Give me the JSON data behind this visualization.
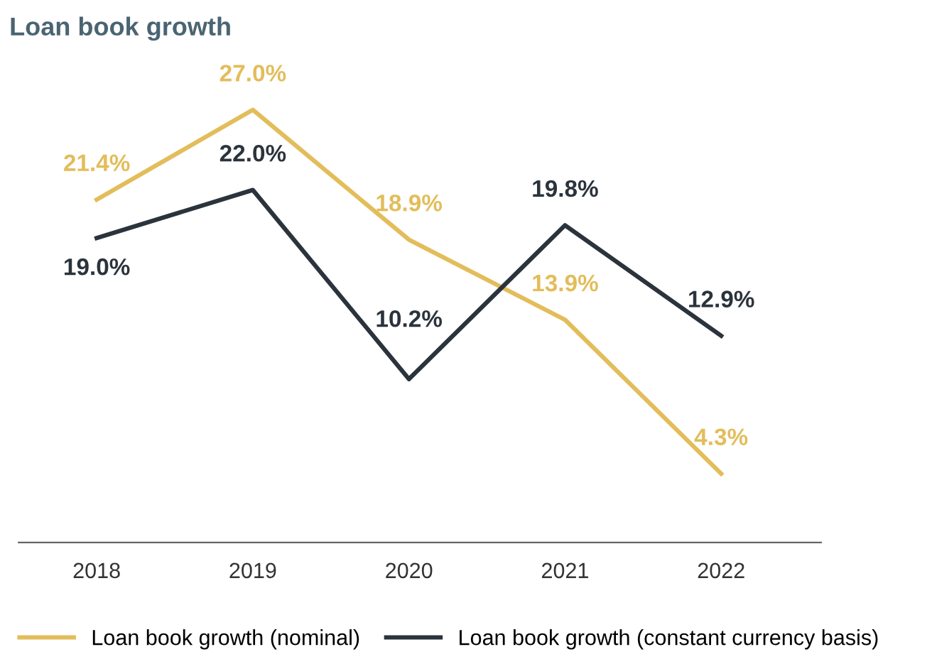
{
  "chart_data": {
    "type": "line",
    "title": "Loan book growth",
    "categories": [
      "2018",
      "2019",
      "2020",
      "2021",
      "2022"
    ],
    "series": [
      {
        "name": "Loan book growth (nominal)",
        "color": "#e3bd5b",
        "values": [
          21.4,
          27.0,
          18.9,
          13.9,
          4.3
        ],
        "value_labels": [
          "21.4%",
          "27.0%",
          "18.9%",
          "13.9%",
          "4.3%"
        ]
      },
      {
        "name": "Loan book growth (constant currency basis)",
        "color": "#2b333c",
        "values": [
          19.0,
          22.0,
          10.2,
          19.8,
          12.9
        ],
        "value_labels": [
          "19.0%",
          "22.0%",
          "10.2%",
          "19.8%",
          "12.9%"
        ]
      }
    ],
    "legend": "bottom",
    "grid": false,
    "marker": "none",
    "line_style": "solid"
  }
}
